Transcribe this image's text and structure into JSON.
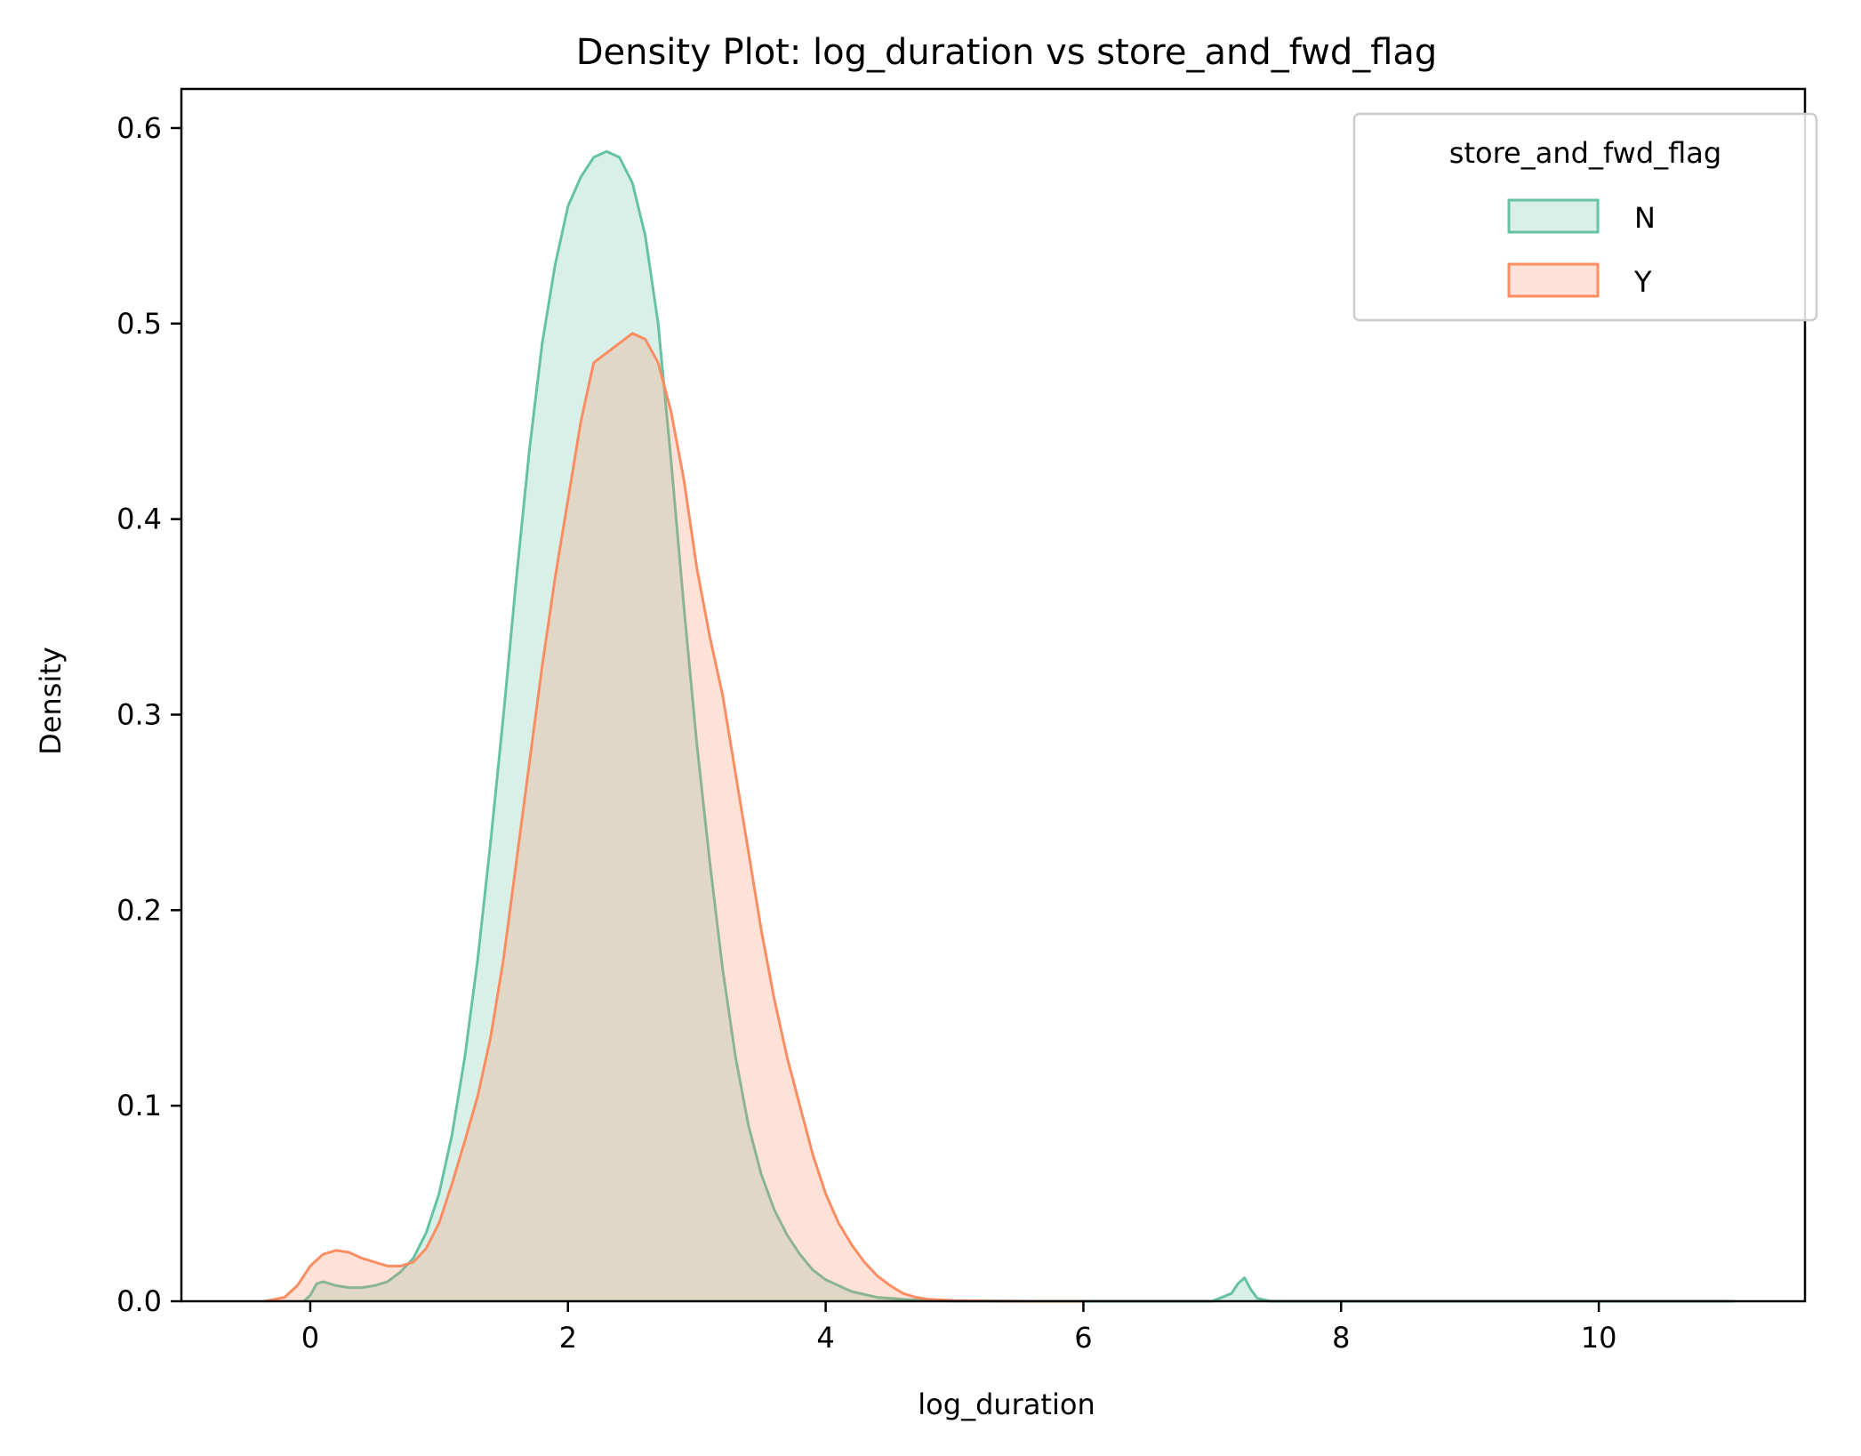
{
  "chart_data": {
    "type": "area",
    "title": "Density Plot: log_duration vs store_and_fwd_flag",
    "xlabel": "log_duration",
    "ylabel": "Density",
    "xlim": [
      -1.0,
      11.6
    ],
    "ylim": [
      0.0,
      0.62
    ],
    "xticks": [
      0,
      2,
      4,
      6,
      8,
      10
    ],
    "xtick_labels": [
      "0",
      "2",
      "4",
      "6",
      "8",
      "10"
    ],
    "yticks": [
      0.0,
      0.1,
      0.2,
      0.3,
      0.4,
      0.5,
      0.6
    ],
    "ytick_labels": [
      "0.0",
      "0.1",
      "0.2",
      "0.3",
      "0.4",
      "0.5",
      "0.6"
    ],
    "grid": false,
    "legend": {
      "title": "store_and_fwd_flag",
      "placement": "top-right"
    },
    "series": [
      {
        "name": "N",
        "color": "#66c2a5",
        "fill_opacity": 0.25,
        "x": [
          -0.05,
          0.0,
          0.05,
          0.1,
          0.15,
          0.2,
          0.3,
          0.4,
          0.5,
          0.6,
          0.7,
          0.8,
          0.9,
          1.0,
          1.1,
          1.2,
          1.3,
          1.4,
          1.5,
          1.6,
          1.7,
          1.8,
          1.9,
          2.0,
          2.1,
          2.2,
          2.3,
          2.4,
          2.5,
          2.6,
          2.7,
          2.8,
          2.9,
          3.0,
          3.1,
          3.2,
          3.3,
          3.4,
          3.5,
          3.6,
          3.7,
          3.8,
          3.9,
          4.0,
          4.2,
          4.4,
          4.6,
          4.8,
          5.0,
          5.5,
          6.0,
          6.5,
          7.0,
          7.15,
          7.2,
          7.25,
          7.3,
          7.35,
          7.45,
          8.0,
          9.0,
          10.0,
          11.05
        ],
        "y": [
          0.0,
          0.003,
          0.009,
          0.01,
          0.009,
          0.008,
          0.007,
          0.007,
          0.008,
          0.01,
          0.015,
          0.022,
          0.035,
          0.055,
          0.085,
          0.125,
          0.175,
          0.235,
          0.3,
          0.37,
          0.435,
          0.49,
          0.53,
          0.56,
          0.575,
          0.585,
          0.588,
          0.585,
          0.572,
          0.545,
          0.5,
          0.43,
          0.355,
          0.285,
          0.225,
          0.17,
          0.125,
          0.09,
          0.065,
          0.047,
          0.034,
          0.024,
          0.016,
          0.011,
          0.005,
          0.002,
          0.001,
          0.0004,
          0.0001,
          0.0,
          0.0,
          0.0,
          0.0,
          0.004,
          0.009,
          0.012,
          0.006,
          0.0015,
          0.0,
          0.0,
          0.0,
          0.0,
          0.0
        ]
      },
      {
        "name": "Y",
        "color": "#fc8d62",
        "fill_opacity": 0.25,
        "x": [
          -0.35,
          -0.2,
          -0.1,
          0.0,
          0.1,
          0.2,
          0.3,
          0.4,
          0.5,
          0.6,
          0.7,
          0.8,
          0.9,
          1.0,
          1.1,
          1.2,
          1.3,
          1.4,
          1.5,
          1.6,
          1.7,
          1.8,
          1.9,
          2.0,
          2.1,
          2.2,
          2.3,
          2.4,
          2.5,
          2.6,
          2.7,
          2.8,
          2.9,
          3.0,
          3.1,
          3.2,
          3.3,
          3.4,
          3.5,
          3.6,
          3.7,
          3.8,
          3.9,
          4.0,
          4.1,
          4.2,
          4.3,
          4.4,
          4.5,
          4.6,
          4.7,
          4.8,
          5.0,
          5.3,
          5.6,
          6.0
        ],
        "y": [
          0.0,
          0.002,
          0.008,
          0.018,
          0.024,
          0.026,
          0.025,
          0.022,
          0.02,
          0.018,
          0.018,
          0.02,
          0.027,
          0.04,
          0.06,
          0.082,
          0.105,
          0.135,
          0.175,
          0.225,
          0.275,
          0.325,
          0.37,
          0.41,
          0.45,
          0.48,
          0.485,
          0.49,
          0.495,
          0.492,
          0.48,
          0.455,
          0.42,
          0.375,
          0.34,
          0.31,
          0.27,
          0.23,
          0.19,
          0.155,
          0.125,
          0.1,
          0.075,
          0.055,
          0.04,
          0.029,
          0.02,
          0.013,
          0.008,
          0.004,
          0.002,
          0.001,
          0.0003,
          0.0001,
          0.0,
          0.0
        ]
      }
    ]
  }
}
